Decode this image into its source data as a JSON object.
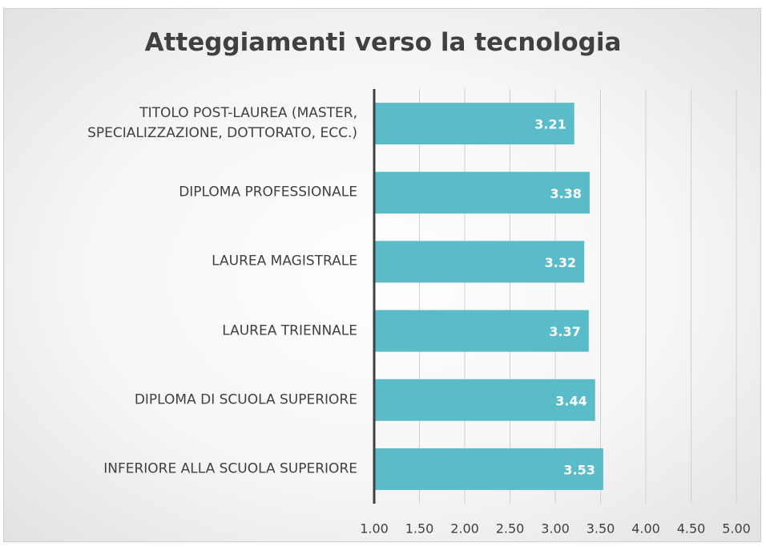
{
  "chart_data": {
    "type": "bar",
    "title": "Atteggiamenti verso la tecnologia",
    "categories": [
      "TITOLO POST-LAUREA (MASTER, SPECIALIZZAZIONE, DOTTORATO, ECC.)",
      "DIPLOMA PROFESSIONALE",
      "LAUREA MAGISTRALE",
      "LAUREA TRIENNALE",
      "DIPLOMA DI SCUOLA SUPERIORE",
      "INFERIORE ALLA SCUOLA SUPERIORE"
    ],
    "values": [
      3.21,
      3.38,
      3.32,
      3.37,
      3.44,
      3.53
    ],
    "color": "#5bbcc9",
    "xlim": [
      1,
      5
    ],
    "xticks": [
      {
        "value": 1,
        "label": "1.00"
      },
      {
        "value": 1.5,
        "label": "1.50"
      },
      {
        "value": 2,
        "label": "2.00"
      },
      {
        "value": 2.5,
        "label": "2.50"
      },
      {
        "value": 3,
        "label": "3.00"
      },
      {
        "value": 3.5,
        "label": "3.50"
      },
      {
        "value": 4,
        "label": "4.00"
      },
      {
        "value": 4.5,
        "label": "4.50"
      },
      {
        "value": 5,
        "label": "5.00"
      }
    ],
    "grid": true
  }
}
